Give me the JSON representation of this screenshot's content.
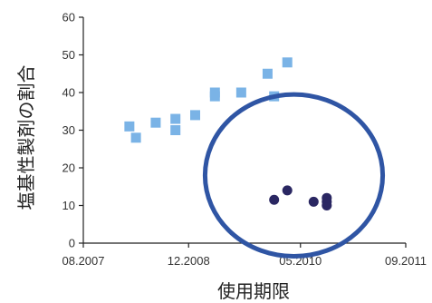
{
  "chart_data": {
    "type": "scatter",
    "title": "",
    "xlabel": "使用期限",
    "ylabel": "塩基性製剤の割合",
    "x_type": "date",
    "xlim": [
      "2007-08",
      "2011-09"
    ],
    "ylim": [
      0,
      60
    ],
    "x_ticks": [
      {
        "value": "2007-08",
        "label": "08.2007"
      },
      {
        "value": "2008-12",
        "label": "12.2008"
      },
      {
        "value": "2010-05",
        "label": "05.2010"
      },
      {
        "value": "2011-09",
        "label": "09.2011"
      }
    ],
    "y_ticks": [
      0,
      10,
      20,
      30,
      40,
      50,
      60
    ],
    "grid": false,
    "legend": "none",
    "series": [
      {
        "marker": "square",
        "color": "#7ab3e6",
        "points": [
          {
            "x": "2008-03",
            "y": 31
          },
          {
            "x": "2008-04",
            "y": 28
          },
          {
            "x": "2008-07",
            "y": 32
          },
          {
            "x": "2008-10",
            "y": 30
          },
          {
            "x": "2008-10",
            "y": 33
          },
          {
            "x": "2009-01",
            "y": 34
          },
          {
            "x": "2009-04",
            "y": 39
          },
          {
            "x": "2009-04",
            "y": 40
          },
          {
            "x": "2009-08",
            "y": 40
          },
          {
            "x": "2009-12",
            "y": 45
          },
          {
            "x": "2010-01",
            "y": 39
          },
          {
            "x": "2010-03",
            "y": 48
          }
        ]
      },
      {
        "marker": "circle",
        "color": "#2a2762",
        "points": [
          {
            "x": "2010-01",
            "y": 11.5
          },
          {
            "x": "2010-03",
            "y": 14
          },
          {
            "x": "2010-07",
            "y": 11
          },
          {
            "x": "2010-09",
            "y": 10
          },
          {
            "x": "2010-09",
            "y": 11
          },
          {
            "x": "2010-09",
            "y": 12
          }
        ]
      }
    ],
    "annotations": [
      {
        "type": "ellipse",
        "stroke": "#2f55a4",
        "center": {
          "x": "2010-04",
          "y": 18
        },
        "radius": {
          "months": 13.5,
          "units": 21.5
        }
      }
    ],
    "colors": {
      "axis": "#222222",
      "tick_text": "#333333"
    }
  }
}
